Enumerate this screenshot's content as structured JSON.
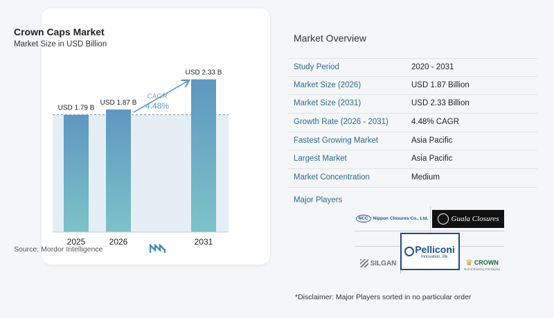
{
  "chart_data": {
    "type": "bar",
    "title": "Crown Caps Market",
    "subtitle": "Market Size in USD Billion",
    "categories": [
      "2025",
      "2026",
      "2031"
    ],
    "values": [
      1.79,
      1.87,
      2.33
    ],
    "value_labels": [
      "USD 1.79 B",
      "USD 1.87 B",
      "USD 2.33 B"
    ],
    "cagr_label": "CAGR",
    "cagr_value": "4.48%",
    "ylim": [
      0,
      2.6
    ],
    "bar_color_top": "#5e97c0",
    "bar_color_bottom": "#7dc3c8"
  },
  "source": "Source:  Mordor Intelligence",
  "overview": {
    "title": "Market Overview",
    "rows": [
      {
        "label": "Study Period",
        "value": "2020 - 2031"
      },
      {
        "label": "Market Size (2026)",
        "value": "USD 1.87 Billion"
      },
      {
        "label": "Market Size (2031)",
        "value": "USD 2.33 Billion"
      },
      {
        "label": "Growth Rate (2026 - 2031)",
        "value": "4.48% CAGR"
      },
      {
        "label": "Fastest Growing Market",
        "value": "Asia Pacific"
      },
      {
        "label": "Largest Market",
        "value": "Asia Pacific"
      },
      {
        "label": "Market Concentration",
        "value": "Medium"
      }
    ]
  },
  "players": {
    "title": "Major Players",
    "nippon": {
      "badge": "NCC",
      "name": "Nippon Closures Co., Ltd."
    },
    "guala": {
      "name": "Guala Closures"
    },
    "silgan": {
      "name": "SILGAN"
    },
    "pelliconi": {
      "name": "Pelliconi",
      "tagline": "Innovation, life."
    },
    "crown": {
      "name": "CROWN",
      "tagline": "Brand-Building Packaging"
    }
  },
  "disclaimer": "*Disclaimer: Major Players sorted in no particular order"
}
